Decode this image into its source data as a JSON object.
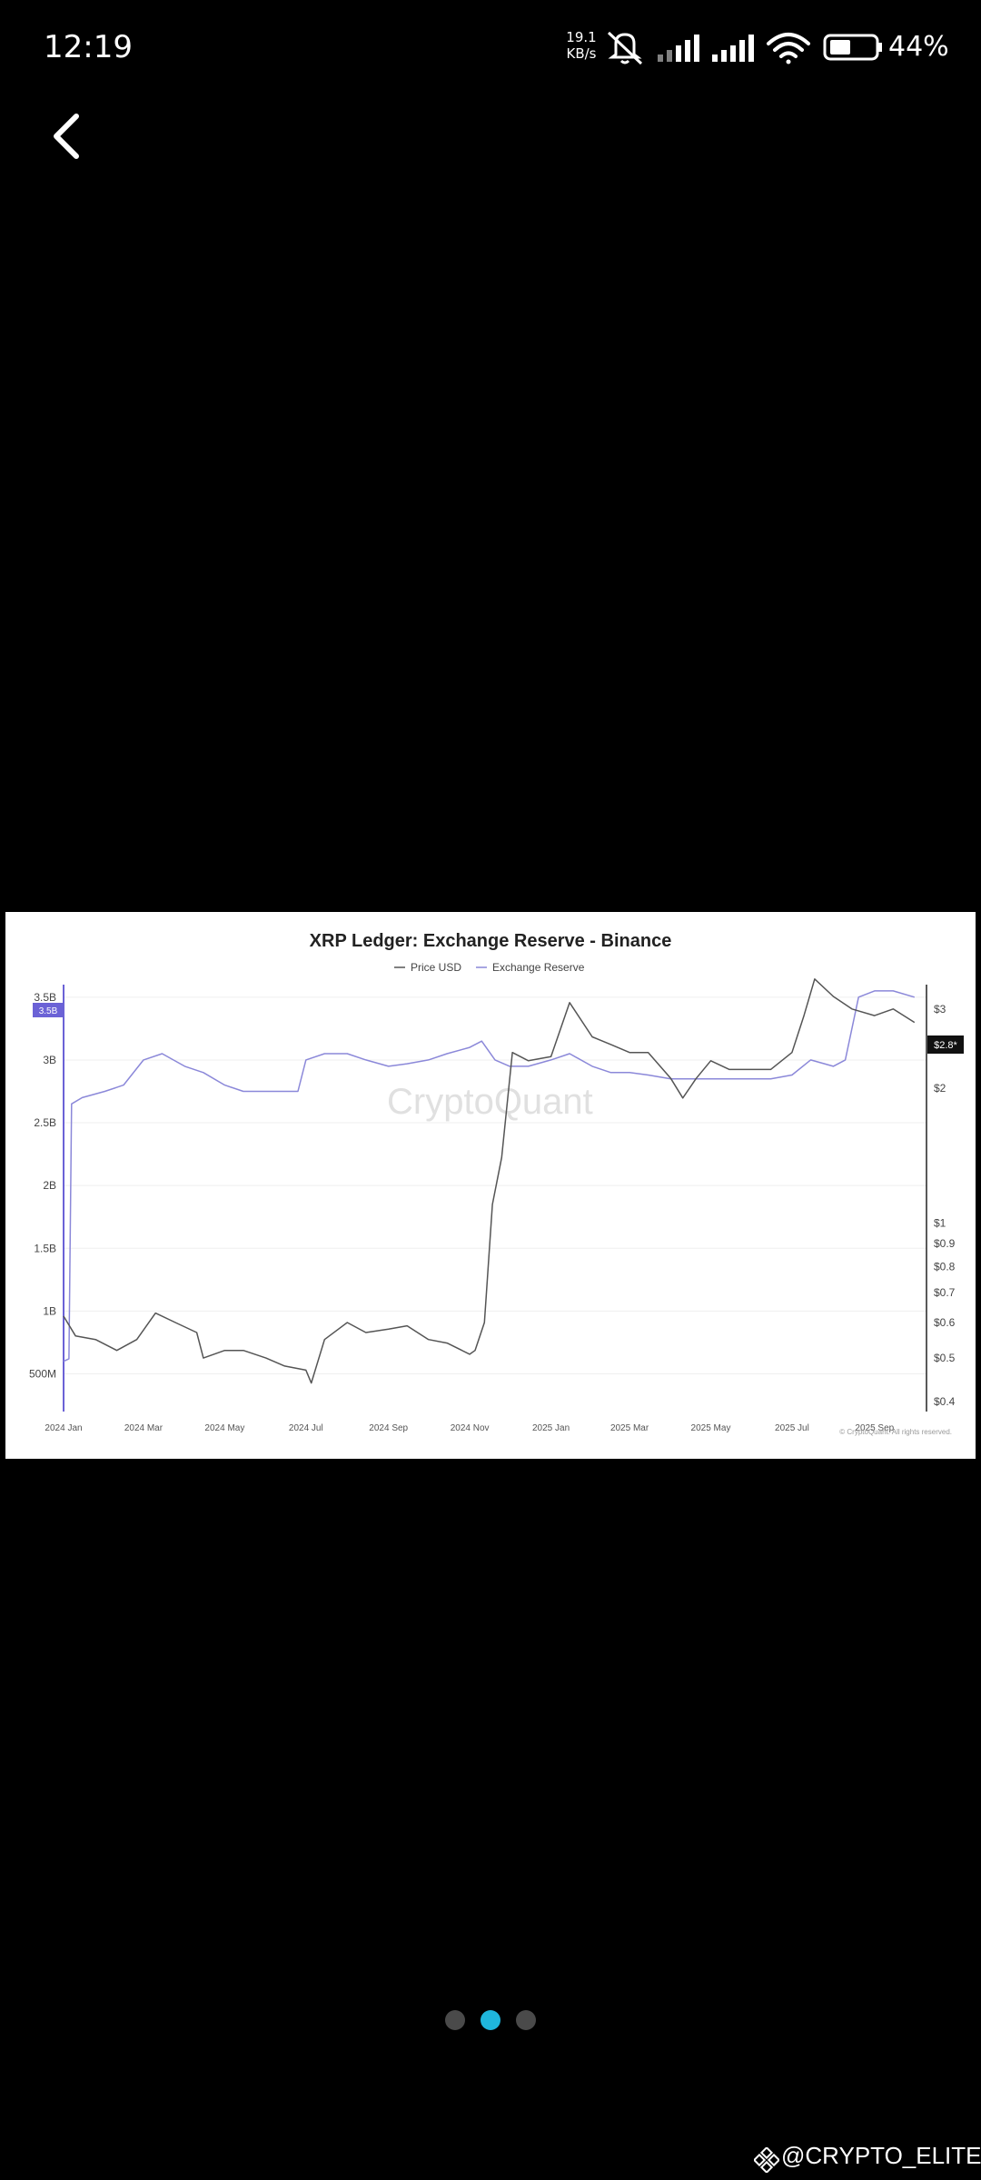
{
  "status_bar": {
    "time": "12:19",
    "net_speed_value": "19.1",
    "net_speed_unit": "KB/s",
    "battery_percent": "44%"
  },
  "chart_image": {
    "title": "XRP Ledger: Exchange Reserve - Binance",
    "legend": [
      "Price USD",
      "Exchange Reserve"
    ],
    "watermark": "CryptoQuant",
    "copyright": "© CryptoQuant. All rights reserved.",
    "current_price_tag": "$2.8*",
    "left_axis_highlight": "3.5B",
    "chart_data": {
      "type": "line",
      "title": "XRP Ledger: Exchange Reserve - Binance",
      "x_ticks": [
        "2024 Jan",
        "2024 Mar",
        "2024 May",
        "2024 Jul",
        "2024 Sep",
        "2024 Nov",
        "2025 Jan",
        "2025 Mar",
        "2025 May",
        "2025 Jul",
        "2025 Sep"
      ],
      "left_axis": {
        "ticks": [
          "500M",
          "1B",
          "1.5B",
          "2B",
          "2.5B",
          "3B",
          "3.5B"
        ],
        "ylim": [
          0.2,
          3.6
        ]
      },
      "right_axis": {
        "ticks": [
          "$0.4",
          "$0.5",
          "$0.6",
          "$0.7",
          "$0.8",
          "$0.9",
          "$1",
          "$2",
          "$3"
        ],
        "scale": "log",
        "ylim": [
          0.38,
          3.4
        ]
      },
      "series": [
        {
          "name": "Exchange Reserve",
          "axis": "left",
          "color": "#8b88d9",
          "x": [
            "2024-01-01",
            "2024-01-05",
            "2024-01-07",
            "2024-01-15",
            "2024-02-01",
            "2024-02-15",
            "2024-03-01",
            "2024-03-15",
            "2024-04-01",
            "2024-04-15",
            "2024-05-01",
            "2024-05-15",
            "2024-06-01",
            "2024-06-15",
            "2024-06-25",
            "2024-07-01",
            "2024-07-15",
            "2024-08-01",
            "2024-08-15",
            "2024-09-01",
            "2024-09-15",
            "2024-10-01",
            "2024-10-15",
            "2024-11-01",
            "2024-11-10",
            "2024-11-20",
            "2024-12-01",
            "2024-12-15",
            "2025-01-01",
            "2025-01-15",
            "2025-02-01",
            "2025-02-15",
            "2025-03-01",
            "2025-03-15",
            "2025-04-01",
            "2025-04-15",
            "2025-05-01",
            "2025-05-15",
            "2025-06-01",
            "2025-06-15",
            "2025-07-01",
            "2025-07-15",
            "2025-08-01",
            "2025-08-10",
            "2025-08-20",
            "2025-09-01",
            "2025-09-15",
            "2025-10-01"
          ],
          "values": [
            0.6,
            0.62,
            2.65,
            2.7,
            2.75,
            2.8,
            3.0,
            3.05,
            2.95,
            2.9,
            2.8,
            2.75,
            2.75,
            2.75,
            2.75,
            3.0,
            3.05,
            3.05,
            3.0,
            2.95,
            2.97,
            3.0,
            3.05,
            3.1,
            3.15,
            3.0,
            2.95,
            2.95,
            3.0,
            3.05,
            2.95,
            2.9,
            2.9,
            2.88,
            2.85,
            2.85,
            2.85,
            2.85,
            2.85,
            2.85,
            2.88,
            3.0,
            2.95,
            3.0,
            3.5,
            3.55,
            3.55,
            3.5
          ]
        },
        {
          "name": "Price USD",
          "axis": "right",
          "color": "#555555",
          "x": [
            "2024-01-01",
            "2024-01-10",
            "2024-01-25",
            "2024-02-10",
            "2024-02-25",
            "2024-03-10",
            "2024-03-25",
            "2024-04-10",
            "2024-04-15",
            "2024-05-01",
            "2024-05-15",
            "2024-06-01",
            "2024-06-15",
            "2024-07-01",
            "2024-07-05",
            "2024-07-15",
            "2024-08-01",
            "2024-08-15",
            "2024-09-01",
            "2024-09-15",
            "2024-10-01",
            "2024-10-15",
            "2024-11-01",
            "2024-11-05",
            "2024-11-12",
            "2024-11-18",
            "2024-11-25",
            "2024-12-03",
            "2024-12-15",
            "2025-01-01",
            "2025-01-15",
            "2025-02-01",
            "2025-02-15",
            "2025-03-01",
            "2025-03-15",
            "2025-04-01",
            "2025-04-10",
            "2025-04-20",
            "2025-05-01",
            "2025-05-15",
            "2025-06-01",
            "2025-06-15",
            "2025-07-01",
            "2025-07-10",
            "2025-07-18",
            "2025-08-01",
            "2025-08-15",
            "2025-09-01",
            "2025-09-15",
            "2025-10-01"
          ],
          "values": [
            0.62,
            0.56,
            0.55,
            0.52,
            0.55,
            0.63,
            0.6,
            0.57,
            0.5,
            0.52,
            0.52,
            0.5,
            0.48,
            0.47,
            0.44,
            0.55,
            0.6,
            0.57,
            0.58,
            0.59,
            0.55,
            0.54,
            0.51,
            0.52,
            0.6,
            1.1,
            1.4,
            2.4,
            2.3,
            2.35,
            3.1,
            2.6,
            2.5,
            2.4,
            2.4,
            2.1,
            1.9,
            2.1,
            2.3,
            2.2,
            2.2,
            2.2,
            2.4,
            2.9,
            3.5,
            3.2,
            3.0,
            2.9,
            3.0,
            2.8
          ]
        }
      ]
    }
  },
  "pager": {
    "count": 3,
    "active_index": 1
  },
  "watermark": {
    "handle": "@CRYPTO_ELITES"
  },
  "colors": {
    "background": "#000000",
    "dot_active": "#1fb6dc",
    "dot_inactive": "#4a4a4a"
  }
}
